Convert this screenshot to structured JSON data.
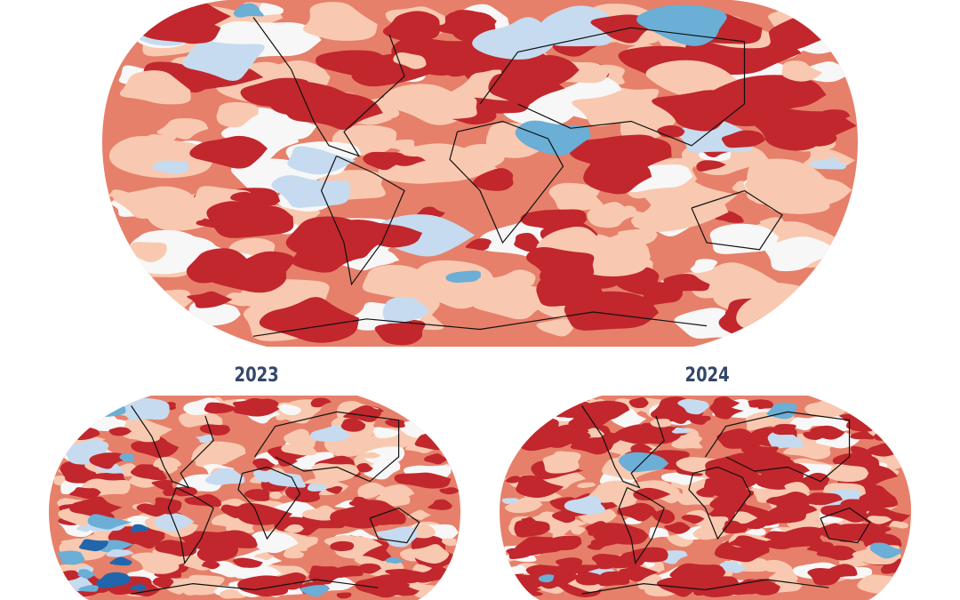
{
  "maps": [
    {
      "id": "main",
      "label": ""
    },
    {
      "id": "left",
      "label": "2023"
    },
    {
      "id": "right",
      "label": "2024"
    }
  ],
  "color_scale": [
    "#2166ac",
    "#6baed6",
    "#c6dbef",
    "#f7f7f7",
    "#f8c9b0",
    "#e6806a",
    "#c1272d"
  ],
  "colors": {
    "label": "#34476a",
    "coastline": "#111111",
    "outline": "#999999"
  }
}
